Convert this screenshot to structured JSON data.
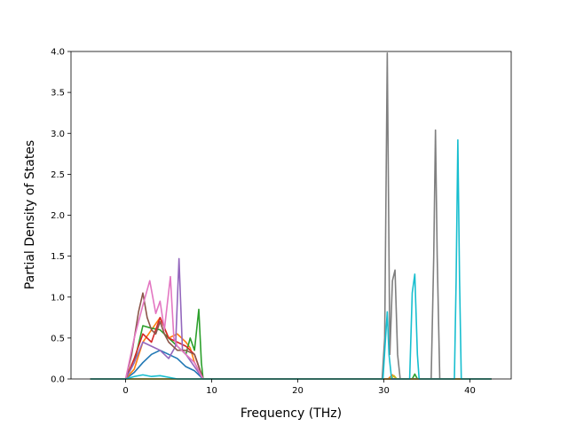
{
  "chart_data": {
    "type": "line",
    "title": "",
    "xlabel": "Frequency (THz)",
    "ylabel": "Partial Density of States",
    "xlim": [
      -6.35,
      44.8
    ],
    "ylim": [
      0,
      4.0
    ],
    "x_ticks": [
      0,
      10,
      20,
      30,
      40
    ],
    "y_ticks": [
      0.0,
      0.5,
      1.0,
      1.5,
      2.0,
      2.5,
      3.0,
      3.5,
      4.0
    ],
    "x_tick_labels": [
      "0",
      "10",
      "20",
      "30",
      "40"
    ],
    "y_tick_labels": [
      "0.0",
      "0.5",
      "1.0",
      "1.5",
      "2.0",
      "2.5",
      "3.0",
      "3.5",
      "4.0"
    ],
    "grid": false,
    "legend": "none",
    "series": [
      {
        "color": "#1f77b4",
        "points": [
          [
            -4.1,
            0
          ],
          [
            0,
            0
          ],
          [
            1,
            0.08
          ],
          [
            2,
            0.2
          ],
          [
            3,
            0.3
          ],
          [
            4,
            0.35
          ],
          [
            5,
            0.3
          ],
          [
            6,
            0.25
          ],
          [
            7,
            0.15
          ],
          [
            8,
            0.1
          ],
          [
            9,
            0
          ],
          [
            30,
            0
          ],
          [
            42.5,
            0
          ]
        ]
      },
      {
        "color": "#ff7f0e",
        "points": [
          [
            -4.1,
            0
          ],
          [
            0,
            0
          ],
          [
            1,
            0.12
          ],
          [
            2,
            0.45
          ],
          [
            3,
            0.6
          ],
          [
            4,
            0.75
          ],
          [
            5,
            0.5
          ],
          [
            6,
            0.55
          ],
          [
            7,
            0.45
          ],
          [
            7.5,
            0.38
          ],
          [
            8,
            0.2
          ],
          [
            9,
            0
          ],
          [
            30.5,
            0
          ],
          [
            31,
            0.05
          ],
          [
            31.5,
            0
          ],
          [
            42.5,
            0
          ]
        ]
      },
      {
        "color": "#2ca02c",
        "points": [
          [
            -4.1,
            0
          ],
          [
            0,
            0
          ],
          [
            1,
            0.2
          ],
          [
            2,
            0.65
          ],
          [
            3,
            0.62
          ],
          [
            4,
            0.6
          ],
          [
            5,
            0.5
          ],
          [
            6,
            0.4
          ],
          [
            7,
            0.3
          ],
          [
            7.5,
            0.5
          ],
          [
            8,
            0.35
          ],
          [
            8.5,
            0.85
          ],
          [
            8.8,
            0.2
          ],
          [
            9,
            0
          ],
          [
            33.3,
            0
          ],
          [
            33.6,
            0.06
          ],
          [
            33.9,
            0
          ],
          [
            42.5,
            0
          ]
        ]
      },
      {
        "color": "#d62728",
        "points": [
          [
            -4.1,
            0
          ],
          [
            0,
            0
          ],
          [
            1,
            0.25
          ],
          [
            2,
            0.55
          ],
          [
            3,
            0.45
          ],
          [
            4,
            0.75
          ],
          [
            5,
            0.5
          ],
          [
            6,
            0.45
          ],
          [
            7,
            0.4
          ],
          [
            8,
            0.3
          ],
          [
            9,
            0
          ],
          [
            42.5,
            0
          ]
        ]
      },
      {
        "color": "#9467bd",
        "points": [
          [
            -4.1,
            0
          ],
          [
            0,
            0
          ],
          [
            1,
            0.2
          ],
          [
            2,
            0.45
          ],
          [
            3,
            0.4
          ],
          [
            4,
            0.35
          ],
          [
            5,
            0.25
          ],
          [
            5.8,
            0.4
          ],
          [
            6.2,
            1.47
          ],
          [
            6.6,
            0.35
          ],
          [
            7,
            0.3
          ],
          [
            8,
            0.15
          ],
          [
            9,
            0
          ],
          [
            42.5,
            0
          ]
        ]
      },
      {
        "color": "#8c564b",
        "points": [
          [
            -4.1,
            0
          ],
          [
            0,
            0
          ],
          [
            0.7,
            0.3
          ],
          [
            1.5,
            0.82
          ],
          [
            2,
            1.05
          ],
          [
            2.5,
            0.75
          ],
          [
            3,
            0.6
          ],
          [
            3.5,
            0.55
          ],
          [
            4,
            0.7
          ],
          [
            4.5,
            0.55
          ],
          [
            5,
            0.45
          ],
          [
            6,
            0.35
          ],
          [
            7,
            0.35
          ],
          [
            8,
            0.3
          ],
          [
            9,
            0
          ],
          [
            42.5,
            0
          ]
        ]
      },
      {
        "color": "#e377c2",
        "points": [
          [
            -4.1,
            0
          ],
          [
            0,
            0
          ],
          [
            1,
            0.5
          ],
          [
            2,
            0.9
          ],
          [
            2.8,
            1.2
          ],
          [
            3.5,
            0.8
          ],
          [
            4,
            0.95
          ],
          [
            4.5,
            0.6
          ],
          [
            5.2,
            1.25
          ],
          [
            5.6,
            0.5
          ],
          [
            6,
            0.4
          ],
          [
            7,
            0.3
          ],
          [
            8,
            0.2
          ],
          [
            9,
            0
          ],
          [
            42.5,
            0
          ]
        ]
      },
      {
        "color": "#7f7f7f",
        "points": [
          [
            -4.1,
            0
          ],
          [
            29.8,
            0
          ],
          [
            30.1,
            0.5
          ],
          [
            30.4,
            3.98
          ],
          [
            30.7,
            0.3
          ],
          [
            31,
            1.2
          ],
          [
            31.3,
            1.33
          ],
          [
            31.6,
            0.3
          ],
          [
            31.9,
            0
          ],
          [
            35.5,
            0
          ],
          [
            35.8,
            1.5
          ],
          [
            36,
            3.04
          ],
          [
            36.2,
            1.5
          ],
          [
            36.5,
            0
          ],
          [
            42.5,
            0
          ]
        ]
      },
      {
        "color": "#bcbd22",
        "points": [
          [
            -4.1,
            0
          ],
          [
            30.8,
            0
          ],
          [
            31.2,
            0.04
          ],
          [
            31.5,
            0
          ],
          [
            42.5,
            0
          ]
        ]
      },
      {
        "color": "#17becf",
        "points": [
          [
            -4.1,
            0
          ],
          [
            0,
            0
          ],
          [
            1,
            0.03
          ],
          [
            2,
            0.05
          ],
          [
            3,
            0.03
          ],
          [
            4,
            0.04
          ],
          [
            5,
            0.02
          ],
          [
            6,
            0
          ],
          [
            29.9,
            0
          ],
          [
            30.2,
            0.5
          ],
          [
            30.4,
            0.82
          ],
          [
            30.6,
            0.3
          ],
          [
            30.9,
            0
          ],
          [
            33,
            0
          ],
          [
            33.3,
            1.05
          ],
          [
            33.6,
            1.28
          ],
          [
            33.9,
            0.3
          ],
          [
            34.1,
            0
          ],
          [
            38.2,
            0
          ],
          [
            38.4,
            1.2
          ],
          [
            38.6,
            2.92
          ],
          [
            38.8,
            1.2
          ],
          [
            39,
            0
          ],
          [
            42.5,
            0
          ]
        ]
      }
    ]
  }
}
